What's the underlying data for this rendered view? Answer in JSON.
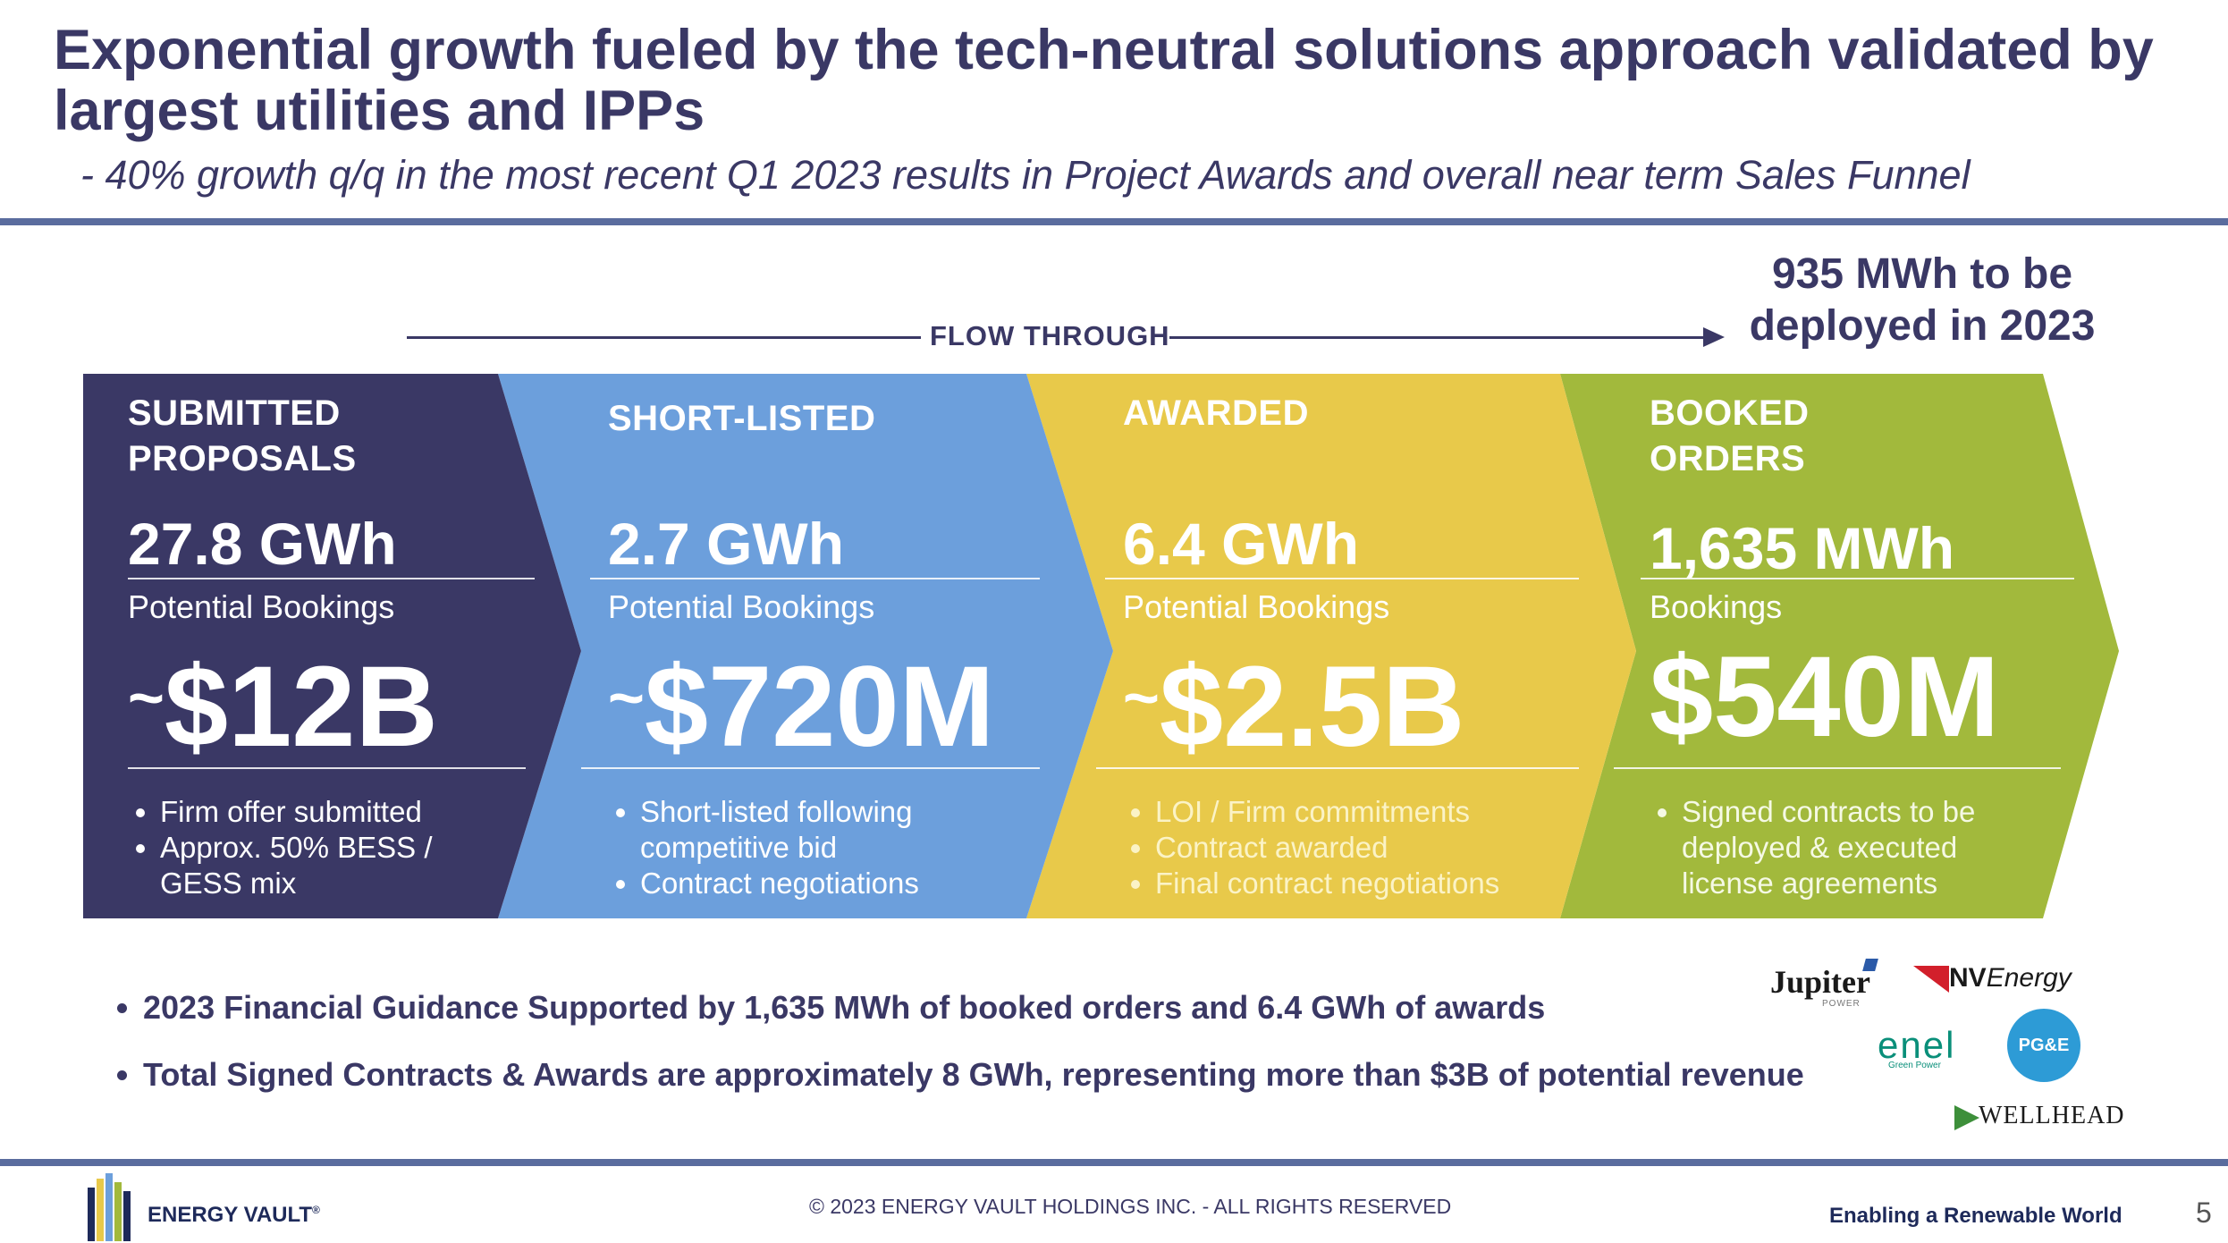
{
  "slide": {
    "title": "Exponential growth fueled by the tech-neutral solutions approach validated by largest utilities and IPPs",
    "subtitle": "- 40% growth q/q in the most recent Q1 2023 results in Project Awards and overall near term Sales Funnel"
  },
  "flow": {
    "label": "FLOW THROUGH",
    "deploy_line1": "935 MWh to be",
    "deploy_line2": "deployed in 2023"
  },
  "stages": [
    {
      "name_line1": "SUBMITTED",
      "name_line2": "PROPOSALS",
      "metric": "27.8 GWh",
      "bookings_label": "Potential Bookings",
      "tilde": "~",
      "amount": "$12B",
      "bullets": [
        "Firm offer submitted",
        "Approx. 50% BESS / GESS mix"
      ],
      "color": "#3a3865"
    },
    {
      "name_line1": "SHORT-LISTED",
      "name_line2": "",
      "metric": "2.7 GWh",
      "bookings_label": "Potential Bookings",
      "tilde": "~",
      "amount": "$720M",
      "bullets": [
        "Short-listed following competitive bid",
        "Contract negotiations"
      ],
      "color": "#6c9fdc"
    },
    {
      "name_line1": "AWARDED",
      "name_line2": "",
      "metric": "6.4 GWh",
      "bookings_label": "Potential Bookings",
      "tilde": "~",
      "amount": "$2.5B",
      "bullets": [
        "LOI / Firm commitments",
        "Contract awarded",
        "Final contract negotiations"
      ],
      "color": "#e8c94a"
    },
    {
      "name_line1": "BOOKED",
      "name_line2": "ORDERS",
      "metric": "1,635 MWh",
      "bookings_label": "Bookings",
      "tilde": "",
      "amount": "$540M",
      "bullets": [
        "Signed contracts to be deployed & executed license agreements"
      ],
      "color": "#a2b93c"
    }
  ],
  "bottom_bullets": [
    "2023 Financial Guidance Supported by 1,635 MWh of booked orders and 6.4 GWh of awards",
    "Total Signed Contracts & Awards are approximately 8 GWh, representing  more than $3B of potential revenue"
  ],
  "logos": {
    "jupiter": "Jupiter",
    "jupiter_sub": "POWER",
    "nv_bold": "NV",
    "nv_rest": "Energy",
    "enel": "enel",
    "enel_sub": "Green Power",
    "pge": "PG&E",
    "wellhead": "WELLHEAD"
  },
  "footer": {
    "brand": "ENERGY VAULT",
    "brand_mark": "®",
    "copyright": "© 2023 ENERGY VAULT HOLDINGS INC. - ALL RIGHTS RESERVED",
    "tagline": "Enabling a Renewable World",
    "page_number": "5"
  },
  "colors": {
    "title": "#3a3865",
    "rule": "#5a6c9e"
  }
}
